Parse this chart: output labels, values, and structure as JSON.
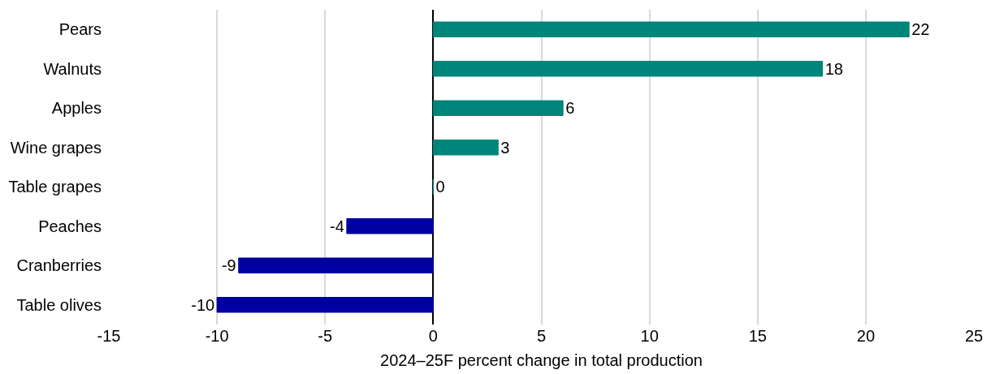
{
  "chart_data": {
    "type": "bar",
    "orientation": "horizontal",
    "xlabel": "2024–25F percent change in total production",
    "categories": [
      "Pears",
      "Walnuts",
      "Apples",
      "Wine grapes",
      "Table grapes",
      "Peaches",
      "Cranberries",
      "Table olives"
    ],
    "values": [
      22,
      18,
      6,
      3,
      0,
      -4,
      -9,
      -10
    ],
    "colors": [
      "#00857a",
      "#00857a",
      "#00857a",
      "#00857a",
      "#00857a",
      "#0000a0",
      "#0000a0",
      "#0000a0"
    ],
    "xlim": [
      -15,
      25
    ],
    "xticks": [
      -15,
      -10,
      -5,
      0,
      5,
      10,
      15,
      20,
      25
    ],
    "grid": "x",
    "data_labels": true
  }
}
